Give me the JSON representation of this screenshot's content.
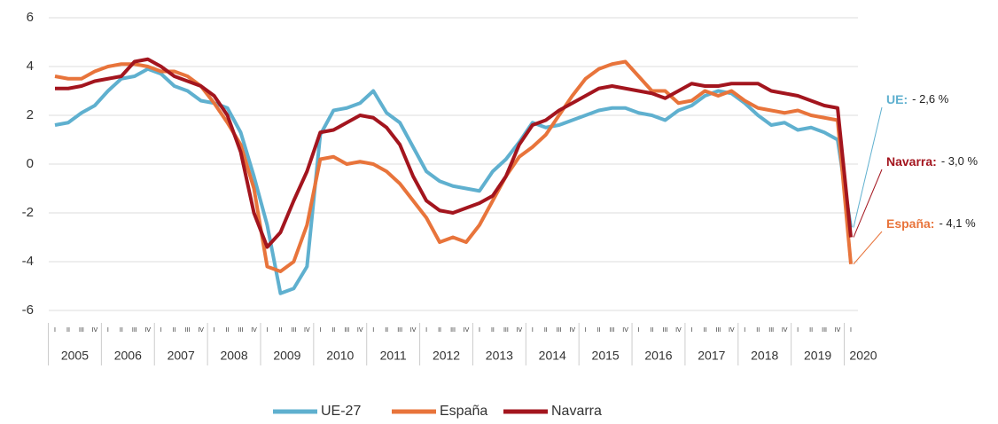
{
  "chart_data": {
    "type": "line",
    "categories": [
      "I",
      "II",
      "III",
      "IV",
      "I",
      "II",
      "III",
      "IV",
      "I",
      "II",
      "III",
      "IV",
      "I",
      "II",
      "III",
      "IV",
      "I",
      "II",
      "III",
      "IV",
      "I",
      "II",
      "III",
      "IV",
      "I",
      "II",
      "III",
      "IV",
      "I",
      "II",
      "III",
      "IV",
      "I",
      "II",
      "III",
      "IV",
      "I",
      "II",
      "III",
      "IV",
      "I",
      "II",
      "III",
      "IV",
      "I",
      "II",
      "III",
      "IV",
      "I",
      "II",
      "III",
      "IV",
      "I",
      "II",
      "III",
      "IV",
      "I",
      "II",
      "III",
      "IV",
      "I"
    ],
    "year_groups": [
      "2005",
      "2006",
      "2007",
      "2008",
      "2009",
      "2010",
      "2011",
      "2012",
      "2013",
      "2014",
      "2015",
      "2016",
      "2017",
      "2018",
      "2019",
      "2020"
    ],
    "series": [
      {
        "name": "UE-27",
        "color": "#5fb0cf",
        "values": [
          1.6,
          1.7,
          2.1,
          2.4,
          3.0,
          3.5,
          3.6,
          3.9,
          3.7,
          3.2,
          3.0,
          2.6,
          2.5,
          2.3,
          1.3,
          -0.5,
          -2.5,
          -5.3,
          -5.1,
          -4.2,
          1.2,
          2.2,
          2.3,
          2.5,
          3.0,
          2.1,
          1.7,
          0.7,
          -0.3,
          -0.7,
          -0.9,
          -1.0,
          -1.1,
          -0.3,
          0.2,
          0.9,
          1.7,
          1.5,
          1.6,
          1.8,
          2.0,
          2.2,
          2.3,
          2.3,
          2.1,
          2.0,
          1.8,
          2.2,
          2.4,
          2.8,
          3.0,
          2.9,
          2.5,
          2.0,
          1.6,
          1.7,
          1.4,
          1.5,
          1.3,
          1.0,
          -2.6
        ]
      },
      {
        "name": "España",
        "color": "#e8743b",
        "values": [
          3.6,
          3.5,
          3.5,
          3.8,
          4.0,
          4.1,
          4.1,
          4.0,
          3.8,
          3.8,
          3.6,
          3.2,
          2.5,
          1.7,
          0.8,
          -1.0,
          -4.2,
          -4.4,
          -4.0,
          -2.5,
          0.2,
          0.3,
          0.0,
          0.1,
          0.0,
          -0.3,
          -0.8,
          -1.5,
          -2.2,
          -3.2,
          -3.0,
          -3.2,
          -2.5,
          -1.5,
          -0.5,
          0.3,
          0.7,
          1.2,
          2.0,
          2.8,
          3.5,
          3.9,
          4.1,
          4.2,
          3.6,
          3.0,
          3.0,
          2.5,
          2.6,
          3.0,
          2.8,
          3.0,
          2.6,
          2.3,
          2.2,
          2.1,
          2.2,
          2.0,
          1.9,
          1.8,
          -4.1
        ]
      },
      {
        "name": "Navarra",
        "color": "#a3151e",
        "values": [
          3.1,
          3.1,
          3.2,
          3.4,
          3.5,
          3.6,
          4.2,
          4.3,
          4.0,
          3.6,
          3.4,
          3.2,
          2.8,
          2.0,
          0.5,
          -2.0,
          -3.4,
          -2.8,
          -1.5,
          -0.3,
          1.3,
          1.4,
          1.7,
          2.0,
          1.9,
          1.5,
          0.8,
          -0.5,
          -1.5,
          -1.9,
          -2.0,
          -1.8,
          -1.6,
          -1.3,
          -0.5,
          0.8,
          1.6,
          1.8,
          2.2,
          2.5,
          2.8,
          3.1,
          3.2,
          3.1,
          3.0,
          2.9,
          2.7,
          3.0,
          3.3,
          3.2,
          3.2,
          3.3,
          3.3,
          3.3,
          3.0,
          2.9,
          2.8,
          2.6,
          2.4,
          2.3,
          -3.0
        ]
      }
    ],
    "annotations": [
      {
        "label": "UE:",
        "text": "- 2,6 %",
        "color": "#5fb0cf"
      },
      {
        "label": "Navarra:",
        "text": "- 3,0 %",
        "color": "#a3151e"
      },
      {
        "label": "España:",
        "text": "- 4,1 %",
        "color": "#e8743b"
      }
    ],
    "ylim": [
      -6,
      6
    ],
    "yticks": [
      -6,
      -4,
      -2,
      0,
      2,
      4,
      6
    ],
    "grid": true,
    "legend": "bottom"
  }
}
